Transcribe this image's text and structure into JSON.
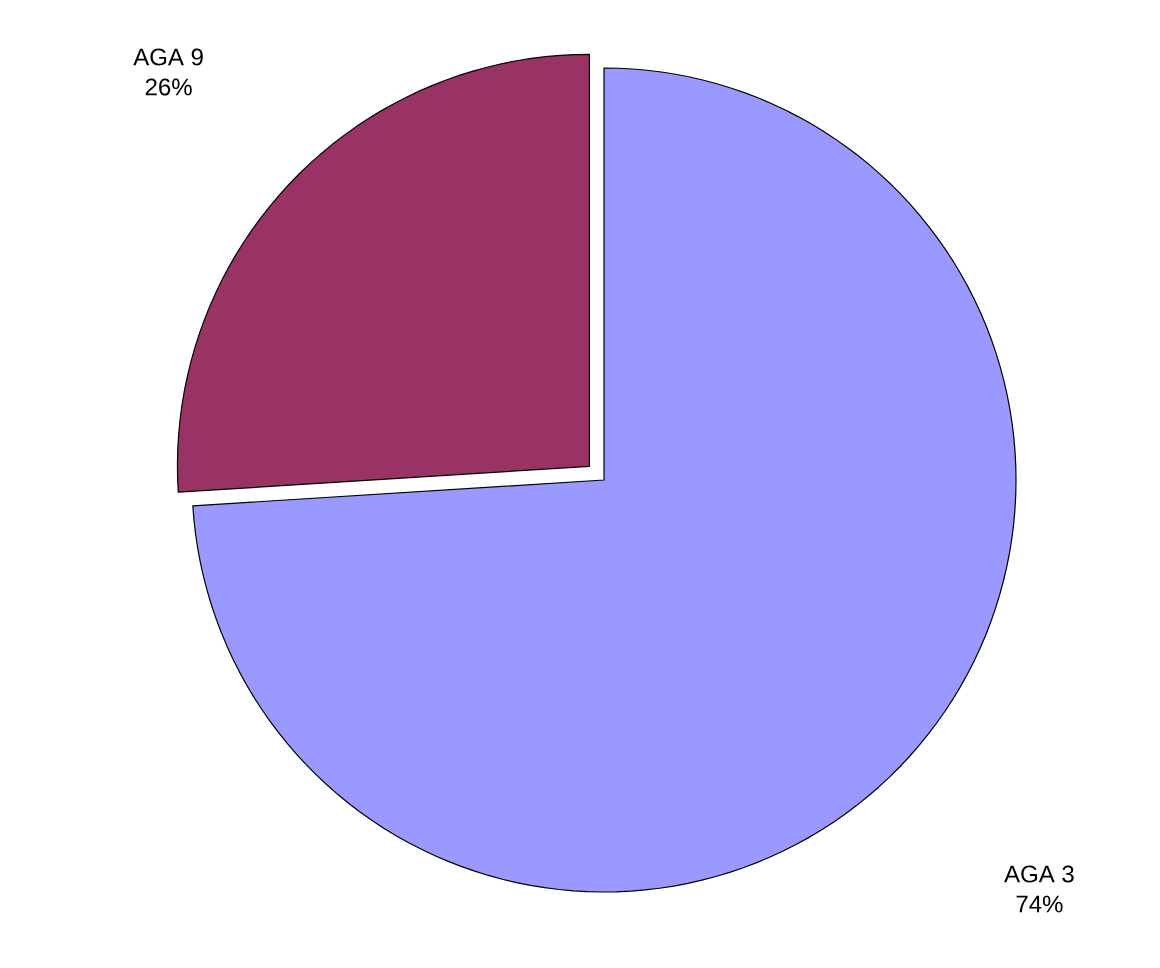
{
  "chart_data": {
    "type": "pie",
    "categories": [
      "AGA 9",
      "AGA 3"
    ],
    "values": [
      26,
      74
    ],
    "value_labels": [
      "26%",
      "74%"
    ],
    "colors": [
      "#993366",
      "#9999ff"
    ]
  }
}
